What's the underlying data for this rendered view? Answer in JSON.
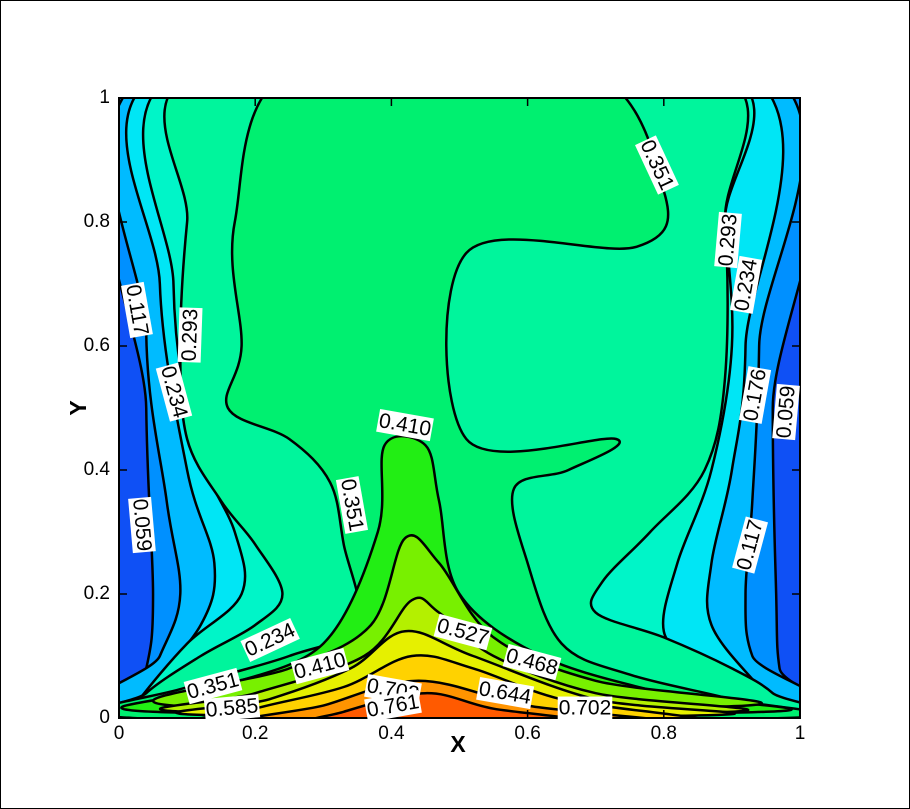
{
  "chart_data": {
    "type": "contour",
    "x_label": "X",
    "y_label": "Y",
    "xlim": [
      0,
      1
    ],
    "ylim": [
      0,
      1
    ],
    "xticks": [
      0,
      0.2,
      0.4,
      0.6,
      0.8,
      1
    ],
    "yticks": [
      0,
      0.2,
      0.4,
      0.6,
      0.8,
      1
    ],
    "levels": [
      0.059,
      0.117,
      0.176,
      0.234,
      0.293,
      0.351,
      0.41,
      0.468,
      0.527,
      0.585,
      0.644,
      0.702,
      0.761
    ],
    "colors": [
      "#0f50f5",
      "#0090ff",
      "#00bbff",
      "#00e6f5",
      "#00f5c8",
      "#00f59c",
      "#00f070",
      "#22ee14",
      "#78f000",
      "#b4f000",
      "#e6f000",
      "#ffd200",
      "#ff9400",
      "#ff5a00"
    ],
    "contour_labels": [
      0.117,
      0.293,
      0.234,
      0.059,
      {
        "value": 0.41,
        "label": "0.410"
      },
      0.351,
      0.234,
      0.351,
      {
        "value": 0.41,
        "label": "0.410"
      },
      0.585,
      0.702,
      0.761,
      0.527,
      0.468,
      0.644,
      0.702,
      0.351,
      0.293,
      0.234,
      0.176,
      0.059,
      0.117
    ]
  }
}
